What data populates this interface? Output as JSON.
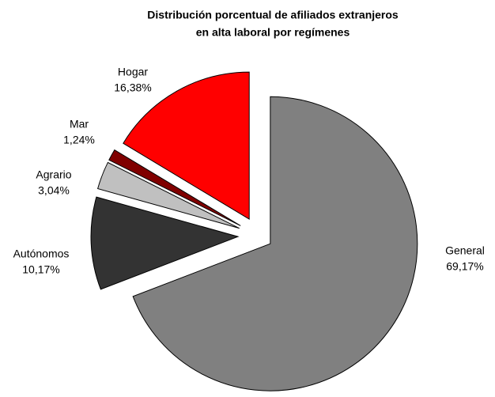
{
  "chart_data": {
    "type": "pie",
    "title": [
      "Distribución porcentual  de afiliados extranjeros",
      "en alta laboral por regímenes"
    ],
    "categories": [
      "General",
      "Autónomos",
      "Agrario",
      "Mar",
      "Hogar"
    ],
    "values": [
      69.17,
      10.17,
      3.04,
      1.24,
      16.38
    ],
    "value_labels": [
      "69,17%",
      "10,17%",
      "3,04%",
      "1,24%",
      "16,38%"
    ],
    "colors": [
      "#808080",
      "#333333",
      "#c0c0c0",
      "#800000",
      "#ff0000"
    ]
  }
}
